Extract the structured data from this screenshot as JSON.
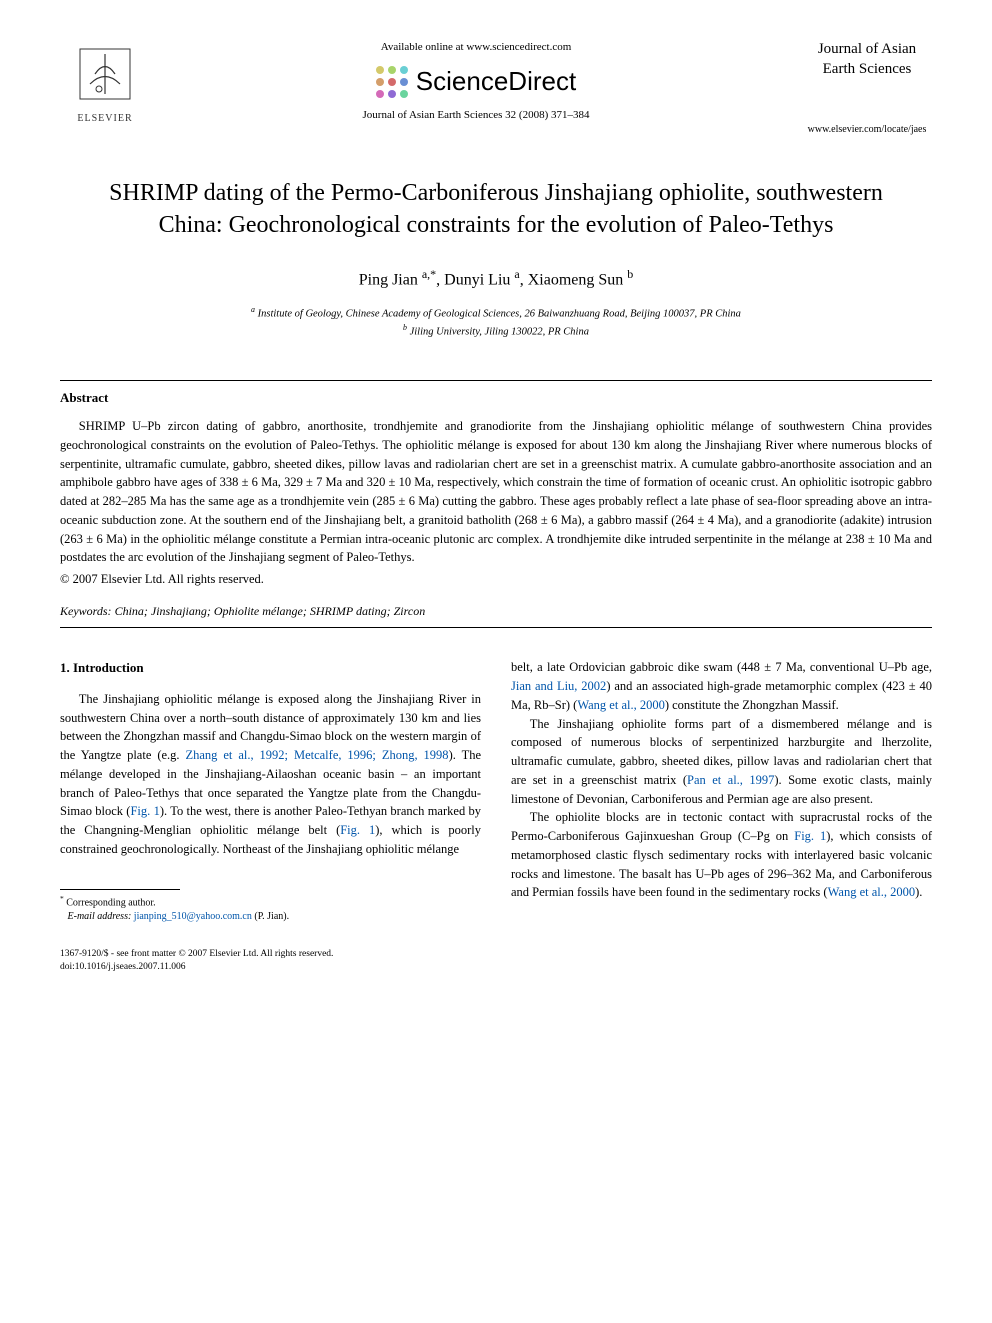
{
  "header": {
    "elsevier_label": "ELSEVIER",
    "available_online": "Available online at www.sciencedirect.com",
    "sciencedirect_label": "ScienceDirect",
    "journal_citation": "Journal of Asian Earth Sciences 32 (2008) 371–384",
    "journal_name_line1": "Journal of Asian",
    "journal_name_line2": "Earth Sciences",
    "journal_url": "www.elsevier.com/locate/jaes",
    "sd_dot_colors": [
      "#d4c96a",
      "#a8d46a",
      "#6acfd4",
      "#d49e6a",
      "#d46a6a",
      "#6a8fd4",
      "#d46ab8",
      "#8f6ad4",
      "#6ad49e"
    ]
  },
  "title": "SHRIMP dating of the Permo-Carboniferous Jinshajiang ophiolite, southwestern China: Geochronological constraints for the evolution of Paleo-Tethys",
  "authors_html": "Ping Jian <sup>a,*</sup>, Dunyi Liu <sup>a</sup>, Xiaomeng Sun <sup>b</sup>",
  "affiliations": {
    "a": "Institute of Geology, Chinese Academy of Geological Sciences, 26 Baiwanzhuang Road, Beijing 100037, PR China",
    "b": "Jiling University, Jiling 130022, PR China"
  },
  "abstract": {
    "heading": "Abstract",
    "text": "SHRIMP U–Pb zircon dating of gabbro, anorthosite, trondhjemite and granodiorite from the Jinshajiang ophiolitic mélange of southwestern China provides geochronological constraints on the evolution of Paleo-Tethys. The ophiolitic mélange is exposed for about 130 km along the Jinshajiang River where numerous blocks of serpentinite, ultramafic cumulate, gabbro, sheeted dikes, pillow lavas and radiolarian chert are set in a greenschist matrix. A cumulate gabbro-anorthosite association and an amphibole gabbro have ages of 338 ± 6 Ma, 329 ± 7 Ma and 320 ± 10 Ma, respectively, which constrain the time of formation of oceanic crust. An ophiolitic isotropic gabbro dated at 282–285 Ma has the same age as a trondhjemite vein (285 ± 6 Ma) cutting the gabbro. These ages probably reflect a late phase of sea-floor spreading above an intra-oceanic subduction zone. At the southern end of the Jinshajiang belt, a granitoid batholith (268 ± 6 Ma), a gabbro massif (264 ± 4 Ma), and a granodiorite (adakite) intrusion (263 ± 6 Ma) in the ophiolitic mélange constitute a Permian intra-oceanic plutonic arc complex. A trondhjemite dike intruded serpentinite in the mélange at 238 ± 10 Ma and postdates the arc evolution of the Jinshajiang segment of Paleo-Tethys.",
    "copyright": "© 2007 Elsevier Ltd. All rights reserved."
  },
  "keywords": {
    "label": "Keywords:",
    "text": "China; Jinshajiang; Ophiolite mélange; SHRIMP dating; Zircon"
  },
  "section1": {
    "heading": "1. Introduction",
    "col1_p1_a": "The Jinshajiang ophiolitic mélange is exposed along the Jinshajiang River in southwestern China over a north–south distance of approximately 130 km and lies between the Zhongzhan massif and Changdu-Simao block on the western margin of the Yangtze plate (e.g. ",
    "col1_p1_ref1": "Zhang et al., 1992; Metcalfe, 1996; Zhong, 1998",
    "col1_p1_b": "). The mélange developed in the Jinshajiang-Ailaoshan oceanic basin – an important branch of Paleo-Tethys that once separated the Yangtze plate from the Changdu-Simao block (",
    "col1_p1_ref2": "Fig. 1",
    "col1_p1_c": "). To the west, there is another Paleo-Tethyan branch marked by the Changning-Menglian ophiolitic mélange belt (",
    "col1_p1_ref3": "Fig. 1",
    "col1_p1_d": "), which is poorly constrained geochronologically. Northeast of the Jinshajiang ophiolitic mélange",
    "col2_p1_a": "belt, a late Ordovician gabbroic dike swam (448 ± 7 Ma, conventional U–Pb age, ",
    "col2_p1_ref1": "Jian and Liu, 2002",
    "col2_p1_b": ") and an associated high-grade metamorphic complex (423 ± 40 Ma, Rb–Sr) (",
    "col2_p1_ref2": "Wang et al., 2000",
    "col2_p1_c": ") constitute the Zhongzhan Massif.",
    "col2_p2_a": "The Jinshajiang ophiolite forms part of a dismembered mélange and is composed of numerous blocks of serpentinized harzburgite and lherzolite, ultramafic cumulate, gabbro, sheeted dikes, pillow lavas and radiolarian chert that are set in a greenschist matrix (",
    "col2_p2_ref1": "Pan et al., 1997",
    "col2_p2_b": "). Some exotic clasts, mainly limestone of Devonian, Carboniferous and Permian age are also present.",
    "col2_p3_a": "The ophiolite blocks are in tectonic contact with supracrustal rocks of the Permo-Carboniferous Gajinxueshan Group (C–Pg on ",
    "col2_p3_ref1": "Fig. 1",
    "col2_p3_b": "), which consists of metamorphosed clastic flysch sedimentary rocks with interlayered basic volcanic rocks and limestone. The basalt has U–Pb ages of 296–362 Ma, and Carboniferous and Permian fossils have been found in the sedimentary rocks (",
    "col2_p3_ref2": "Wang et al., 2000",
    "col2_p3_c": ")."
  },
  "footnote": {
    "corr_label": "Corresponding author.",
    "email_label": "E-mail address:",
    "email": "jianping_510@yahoo.com.cn",
    "email_name": "(P. Jian)."
  },
  "footer": {
    "line1": "1367-9120/$ - see front matter © 2007 Elsevier Ltd. All rights reserved.",
    "line2": "doi:10.1016/j.jseaes.2007.11.006"
  },
  "colors": {
    "link": "#0055aa",
    "text": "#000000",
    "background": "#ffffff"
  }
}
